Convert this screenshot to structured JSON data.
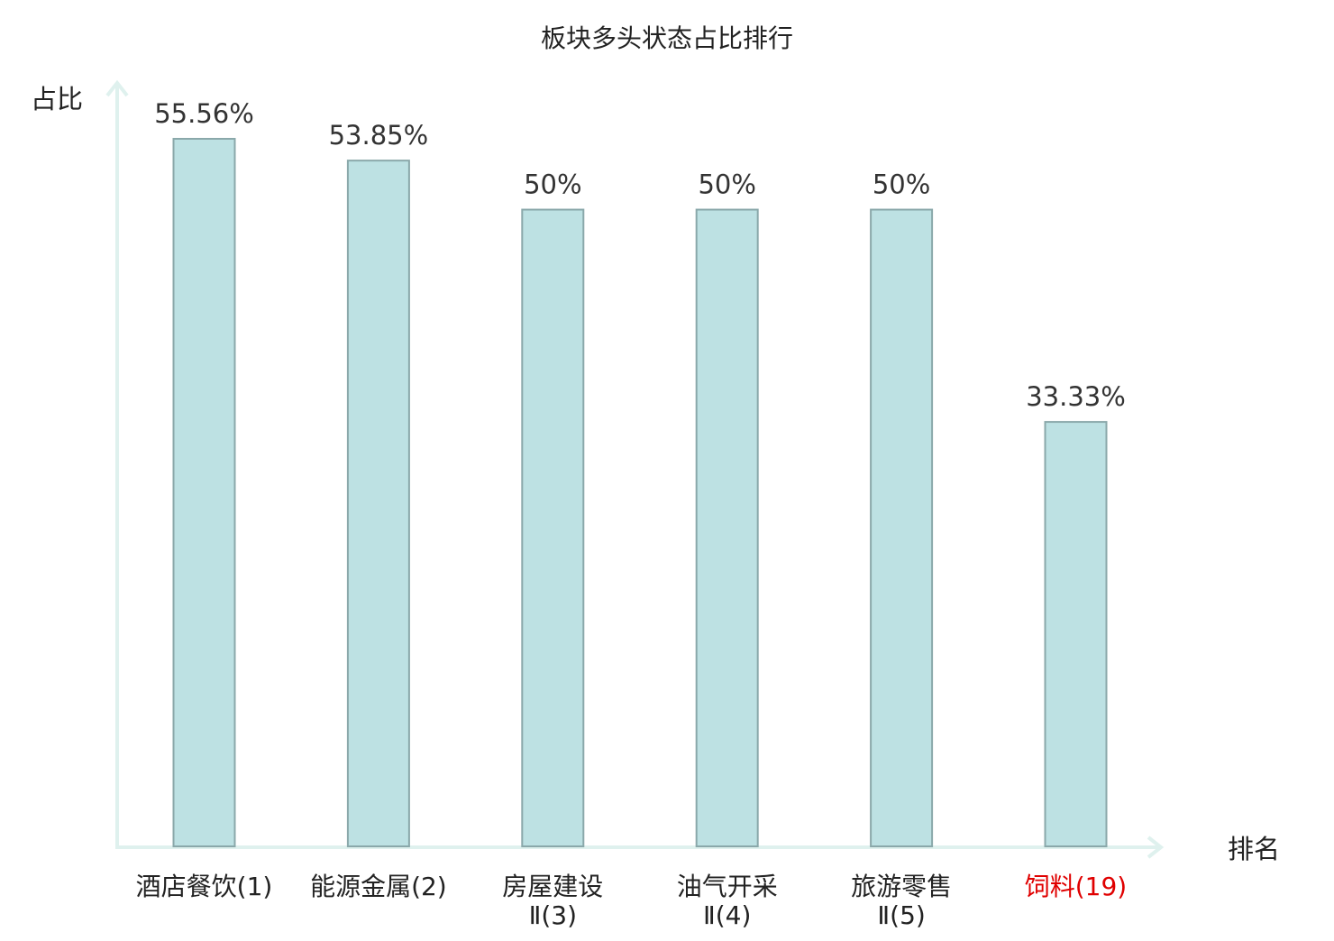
{
  "chart_data": {
    "type": "bar",
    "title": "板块多头状态占比排行",
    "xlabel": "排名",
    "ylabel": "占比",
    "ylim": [
      0,
      60
    ],
    "grid": false,
    "categories": [
      [
        "酒店餐饮(1)"
      ],
      [
        "能源金属(2)"
      ],
      [
        "房屋建设",
        "Ⅱ(3)"
      ],
      [
        "油气开采",
        "Ⅱ(4)"
      ],
      [
        "旅游零售",
        "Ⅱ(5)"
      ],
      [
        "饲料(19)"
      ]
    ],
    "values": [
      55.56,
      53.85,
      50,
      50,
      50,
      33.33
    ],
    "value_labels": [
      "55.56%",
      "53.85%",
      "50%",
      "50%",
      "50%",
      "33.33%"
    ],
    "highlight_index": 5
  },
  "colors": {
    "bar_fill": "#bde1e3",
    "bar_stroke": "#8aa8aa",
    "axis": "#dff1ee",
    "text": "#333333",
    "highlight": "#e00000"
  }
}
